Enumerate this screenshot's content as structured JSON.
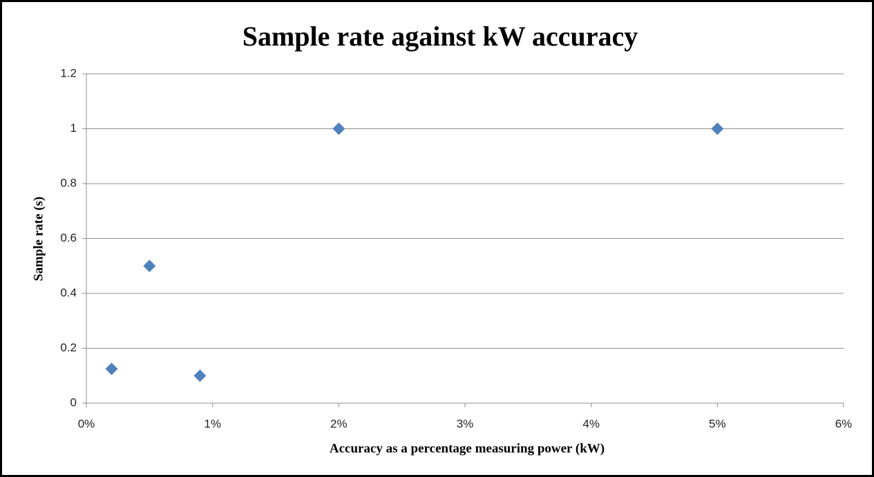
{
  "chart_data": {
    "type": "scatter",
    "title": "Sample rate against kW accuracy",
    "x_label": "Accuracy as a percentage measuring power (kW)",
    "y_label": "Sample rate (s)",
    "x": [
      0.2,
      0.5,
      0.9,
      2,
      5
    ],
    "values": [
      0.125,
      0.5,
      0.1,
      1,
      1
    ],
    "color": "#4f81bd",
    "xlim": [
      0,
      6
    ],
    "xticks": [
      {
        "value": 0,
        "label": "0%"
      },
      {
        "value": 1,
        "label": "1%"
      },
      {
        "value": 2,
        "label": "2%"
      },
      {
        "value": 3,
        "label": "3%"
      },
      {
        "value": 4,
        "label": "4%"
      },
      {
        "value": 5,
        "label": "5%"
      },
      {
        "value": 6,
        "label": "6%"
      }
    ],
    "ylim": [
      0,
      1.2
    ],
    "yticks": [
      0,
      0.2,
      0.4,
      0.6,
      0.8,
      1,
      1.2
    ],
    "grid": true
  }
}
